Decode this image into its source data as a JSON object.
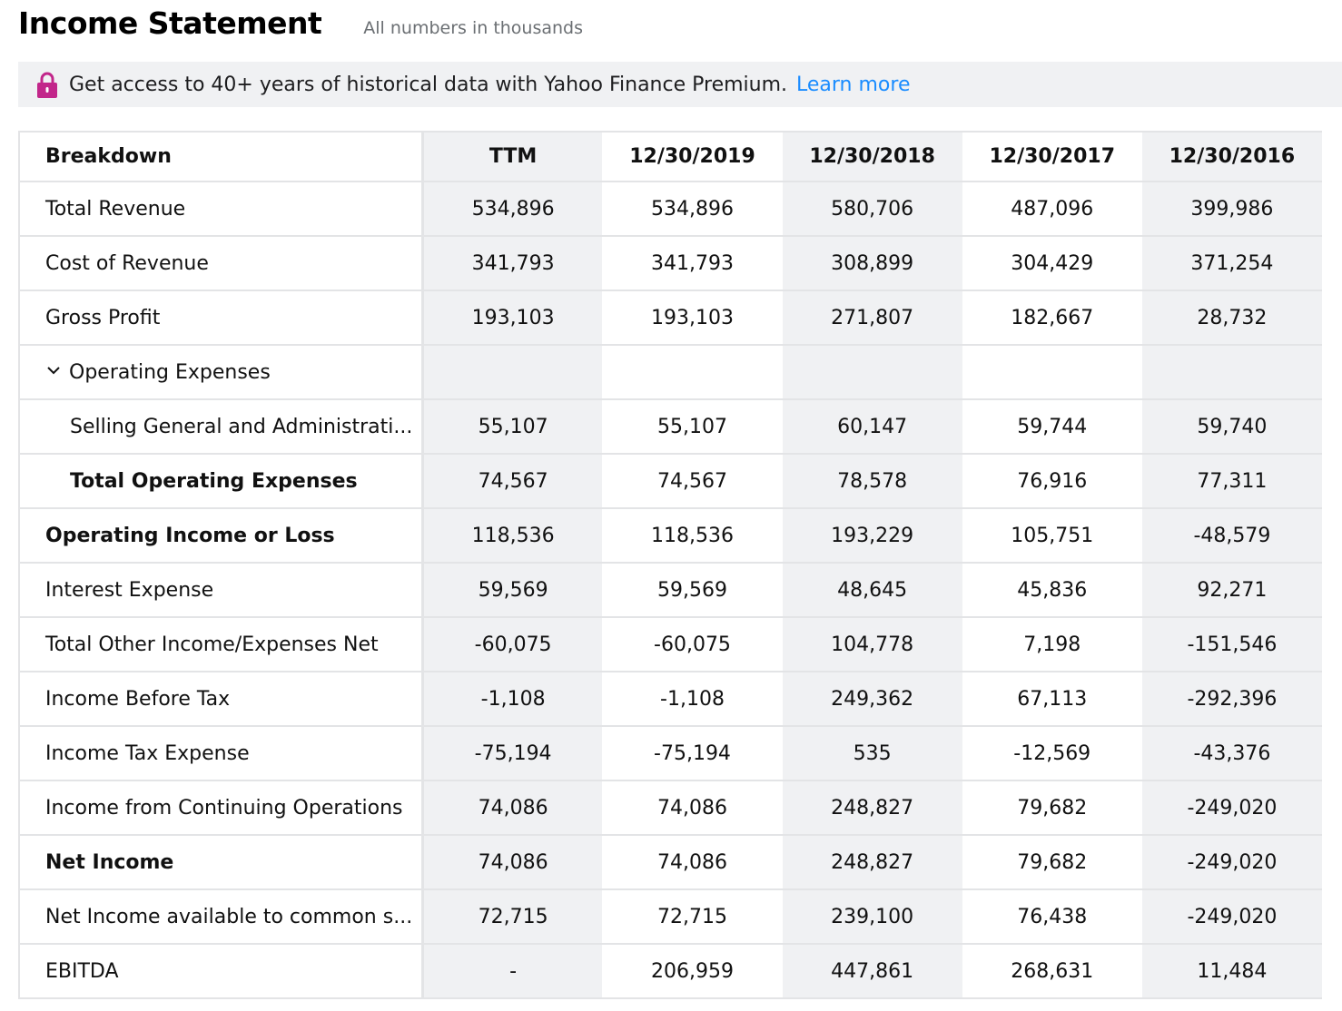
{
  "header": {
    "title": "Income Statement",
    "subtitle": "All numbers in thousands"
  },
  "banner": {
    "icon": "lock-icon",
    "text": "Get access to 40+ years of historical data with Yahoo Finance Premium.",
    "link": "Learn more",
    "link_color": "#1a8cff",
    "icon_color": "#c2268a"
  },
  "table": {
    "columns": [
      "Breakdown",
      "TTM",
      "12/30/2019",
      "12/30/2018",
      "12/30/2017",
      "12/30/2016"
    ],
    "rows": [
      {
        "label": "Total Revenue",
        "values": [
          "534,896",
          "534,896",
          "580,706",
          "487,096",
          "399,986"
        ]
      },
      {
        "label": "Cost of Revenue",
        "values": [
          "341,793",
          "341,793",
          "308,899",
          "304,429",
          "371,254"
        ]
      },
      {
        "label": "Gross Profit",
        "values": [
          "193,103",
          "193,103",
          "271,807",
          "182,667",
          "28,732"
        ]
      },
      {
        "label": "Operating Expenses",
        "values": [
          "",
          "",
          "",
          "",
          ""
        ]
      },
      {
        "label": "Selling General and Administrati...",
        "values": [
          "55,107",
          "55,107",
          "60,147",
          "59,744",
          "59,740"
        ]
      },
      {
        "label": "Total Operating Expenses",
        "values": [
          "74,567",
          "74,567",
          "78,578",
          "76,916",
          "77,311"
        ]
      },
      {
        "label": "Operating Income or Loss",
        "values": [
          "118,536",
          "118,536",
          "193,229",
          "105,751",
          "-48,579"
        ]
      },
      {
        "label": "Interest Expense",
        "values": [
          "59,569",
          "59,569",
          "48,645",
          "45,836",
          "92,271"
        ]
      },
      {
        "label": "Total Other Income/Expenses Net",
        "values": [
          "-60,075",
          "-60,075",
          "104,778",
          "7,198",
          "-151,546"
        ]
      },
      {
        "label": "Income Before Tax",
        "values": [
          "-1,108",
          "-1,108",
          "249,362",
          "67,113",
          "-292,396"
        ]
      },
      {
        "label": "Income Tax Expense",
        "values": [
          "-75,194",
          "-75,194",
          "535",
          "-12,569",
          "-43,376"
        ]
      },
      {
        "label": "Income from Continuing Operations",
        "values": [
          "74,086",
          "74,086",
          "248,827",
          "79,682",
          "-249,020"
        ]
      },
      {
        "label": "Net Income",
        "values": [
          "74,086",
          "74,086",
          "248,827",
          "79,682",
          "-249,020"
        ]
      },
      {
        "label": "Net Income available to common s...",
        "values": [
          "72,715",
          "72,715",
          "239,100",
          "76,438",
          "-249,020"
        ]
      },
      {
        "label": "EBITDA",
        "values": [
          "-",
          "206,959",
          "447,861",
          "268,631",
          "11,484"
        ]
      }
    ]
  }
}
